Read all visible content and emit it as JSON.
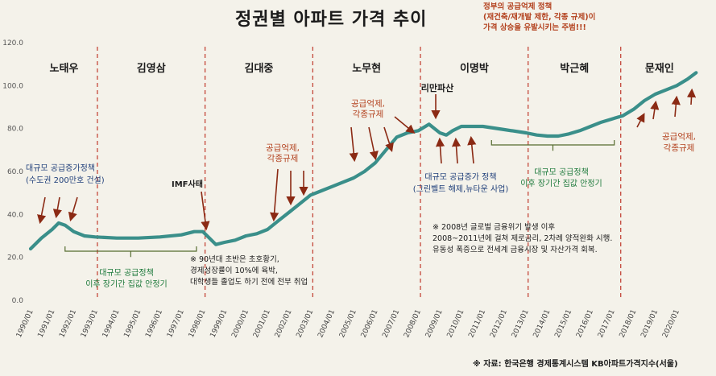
{
  "title": "정권별 아파트 가격 추이",
  "top_note": [
    "정부의 공급억제 정책",
    "(재건축/재개발 제한, 각종 규제)이",
    "가격 상승을 유발시키는 주범!!!"
  ],
  "source": "※ 자료: 한국은행 경제통계시스템 KB아파트가격지수(서울)",
  "colors": {
    "line": "#3a8f8a",
    "divider": "#c0392b",
    "arrow": "#8b2a14",
    "red_text": "#b3421f",
    "blue_text": "#1f3f7a",
    "green_text": "#1e7a3c",
    "black_text": "#1b1b1b"
  },
  "chart_data": {
    "type": "line",
    "title": "정권별 아파트 가격 추이",
    "ylim": [
      0,
      120
    ],
    "y_ticks": [
      "0.0",
      "20.0",
      "40.0",
      "60.0",
      "80.0",
      "100.0",
      "120.0"
    ],
    "x_ticks": [
      "1990/01",
      "1991/01",
      "1992/01",
      "1993/01",
      "1994/01",
      "1995/01",
      "1996/01",
      "1997/01",
      "1998/01",
      "1999/01",
      "2000/01",
      "2001/01",
      "2002/01",
      "2003/01",
      "2004/01",
      "2005/01",
      "2006/01",
      "2007/01",
      "2008/01",
      "2009/01",
      "2010/01",
      "2011/01",
      "2012/01",
      "2013/01",
      "2014/01",
      "2015/01",
      "2016/01",
      "2017/01",
      "2018/01",
      "2019/01",
      "2020/01"
    ],
    "grid": false,
    "series": [
      {
        "x": [
          1990.0,
          1990.5,
          1991.0,
          1991.3,
          1991.6,
          1992.0,
          1992.5,
          1993.0,
          1994.0,
          1995.0,
          1996.0,
          1997.0,
          1997.6,
          1998.0,
          1998.3,
          1998.6,
          1999.0,
          1999.5,
          2000.0,
          2000.5,
          2001.0,
          2001.5,
          2002.0,
          2002.5,
          2003.0,
          2003.5,
          2004.0,
          2004.5,
          2005.0,
          2005.5,
          2006.0,
          2006.5,
          2007.0,
          2007.5,
          2008.0,
          2008.5,
          2009.0,
          2009.3,
          2009.6,
          2010.0,
          2010.5,
          2011.0,
          2012.0,
          2013.0,
          2013.5,
          2014.0,
          2014.5,
          2015.0,
          2015.5,
          2016.0,
          2016.5,
          2017.0,
          2017.5,
          2018.0,
          2018.5,
          2019.0,
          2019.5,
          2020.0,
          2020.5,
          2020.9
        ],
        "y": [
          24,
          29,
          33,
          36,
          35,
          32,
          30,
          29.5,
          29,
          29,
          29.5,
          30.5,
          32,
          32,
          29,
          26,
          27,
          28,
          30,
          31,
          33,
          37,
          41,
          45,
          49,
          51,
          53,
          55,
          57,
          60,
          64,
          70,
          76,
          78,
          79,
          82,
          78,
          77,
          79,
          81,
          81,
          81,
          79.5,
          78,
          77,
          76.5,
          76.5,
          77.5,
          79,
          81,
          83,
          84.5,
          86,
          89,
          93,
          96,
          98,
          100,
          103,
          106
        ]
      }
    ],
    "regimes": [
      {
        "name": "노태우",
        "start": 1990.0,
        "end": 1993.1
      },
      {
        "name": "김영삼",
        "start": 1993.1,
        "end": 1998.1
      },
      {
        "name": "김대중",
        "start": 1998.1,
        "end": 2003.1
      },
      {
        "name": "노무현",
        "start": 2003.1,
        "end": 2008.1
      },
      {
        "name": "이명박",
        "start": 2008.1,
        "end": 2013.1
      },
      {
        "name": "박근혜",
        "start": 2013.1,
        "end": 2017.4
      },
      {
        "name": "문재인",
        "start": 2017.4,
        "end": 2021.0
      }
    ],
    "annotations": {
      "supply_policy_top": [
        "대규모 공급증가정책",
        "(수도권 200만호 건설)"
      ],
      "supply_policy_bottom": [
        "대규모 공급정책",
        "이후 장기간 집값 안정기"
      ],
      "imf": "IMF사태",
      "imf_note": [
        "※ 90년대 초반은 초호황기,",
        "경제성장률이 10%에 육박,",
        "대학생들 졸업도 하기 전에 전부 취업"
      ],
      "kdj_supply": [
        "공급억제,",
        "각종규제"
      ],
      "roh_supply": [
        "공급억제,",
        "각종규제"
      ],
      "lehman": "리만파산",
      "lee_supply": [
        "대규모 공급증가 정책",
        "(그린벨트 해제,뉴타운 사업)"
      ],
      "crisis_note": [
        "※ 2008년 글로벌 금융위기 발생 이후",
        "2008~2011년에 걸쳐 제로금리, 2차례 양적완화 시행.",
        "유동성 폭증으로 전세계 금융시장 및 자산가격 회복."
      ],
      "park_supply": [
        "대규모 공급정책",
        "이후 장기간 집값 안정기"
      ],
      "moon_supply": [
        "공급억제,",
        "각종규제"
      ]
    }
  }
}
